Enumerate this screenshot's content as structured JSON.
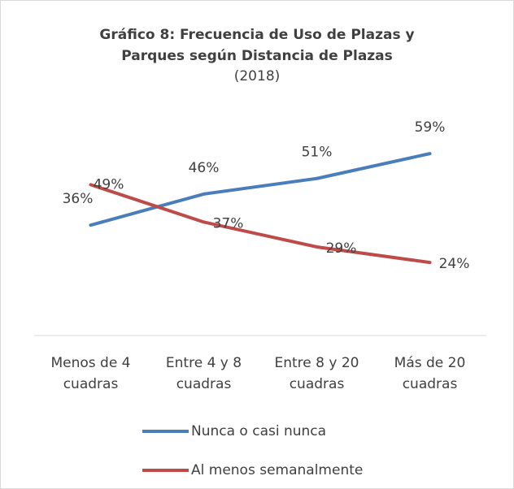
{
  "chart_data": {
    "type": "line",
    "title": "Gráfico 8: Frecuencia de Uso de Plazas y Parques según Distancia de Plazas",
    "subtitle": "(2018)",
    "categories": [
      "Menos de 4 cuadras",
      "Entre 4 y 8 cuadras",
      "Entre 8 y 20 cuadras",
      "Más de 20 cuadras"
    ],
    "ylim": [
      0,
      70
    ],
    "series": [
      {
        "name": "Nunca o casi nunca",
        "color": "#4a7ebb",
        "values": [
          36,
          46,
          51,
          59
        ],
        "value_labels": [
          "36%",
          "46%",
          "51%",
          "59%"
        ]
      },
      {
        "name": "Al menos semanalmente",
        "color": "#be4b48",
        "values": [
          49,
          37,
          29,
          24
        ],
        "value_labels": [
          "49%",
          "37%",
          "29%",
          "24%"
        ]
      }
    ],
    "legend": "bottom"
  }
}
